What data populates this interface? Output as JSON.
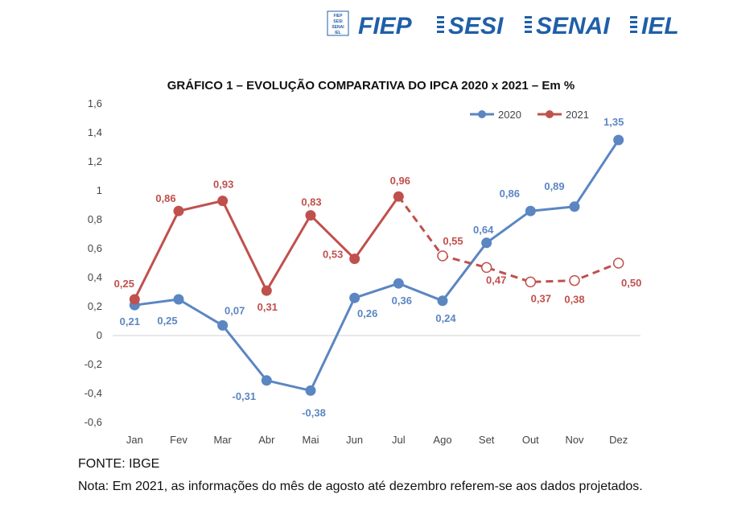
{
  "logo": {
    "words": [
      "FIEP",
      "SESI",
      "SENAI",
      "IEL"
    ],
    "mark_text": [
      "FIEP",
      "SESI",
      "SENAI",
      "IEL"
    ],
    "color": "#1f5fa8"
  },
  "chart_data": {
    "type": "line",
    "title": "GRÁFICO 1 – EVOLUÇÃO COMPARATIVA DO IPCA 2020 x 2021 – Em %",
    "categories": [
      "Jan",
      "Fev",
      "Mar",
      "Abr",
      "Mai",
      "Jun",
      "Jul",
      "Ago",
      "Set",
      "Out",
      "Nov",
      "Dez"
    ],
    "ylim": [
      -0.6,
      1.6
    ],
    "yticks": [
      -0.6,
      -0.4,
      -0.2,
      0,
      0.2,
      0.4,
      0.6,
      0.8,
      1,
      1.2,
      1.4,
      1.6
    ],
    "ytick_labels": [
      "-0,6",
      "-0,4",
      "-0,2",
      "0",
      "0,2",
      "0,4",
      "0,6",
      "0,8",
      "1",
      "1,2",
      "1,4",
      "1,6"
    ],
    "legend_position": "top-right",
    "series": [
      {
        "name": "2020",
        "color": "#5b86c2",
        "values": [
          0.21,
          0.25,
          0.07,
          -0.31,
          -0.38,
          0.26,
          0.36,
          0.24,
          0.64,
          0.86,
          0.89,
          1.35
        ],
        "labels": [
          "0,21",
          "0,25",
          "0,07",
          "-0,31",
          "-0,38",
          "0,26",
          "0,36",
          "0,24",
          "0,64",
          "0,86",
          "0,89",
          "1,35"
        ],
        "projected_from_index": null
      },
      {
        "name": "2021",
        "color": "#c0504d",
        "values": [
          0.25,
          0.86,
          0.93,
          0.31,
          0.83,
          0.53,
          0.96,
          0.55,
          0.47,
          0.37,
          0.38,
          0.5
        ],
        "labels": [
          "0,25",
          "0,86",
          "0,93",
          "0,31",
          "0,83",
          "0,53",
          "0,96",
          "0,55",
          "0,47",
          "0,37",
          "0,38",
          "0,50"
        ],
        "projected_from_index": 7
      }
    ]
  },
  "footer": {
    "source": "FONTE: IBGE",
    "note": "Nota: Em 2021, as informações do mês de agosto até dezembro referem-se aos dados projetados."
  }
}
